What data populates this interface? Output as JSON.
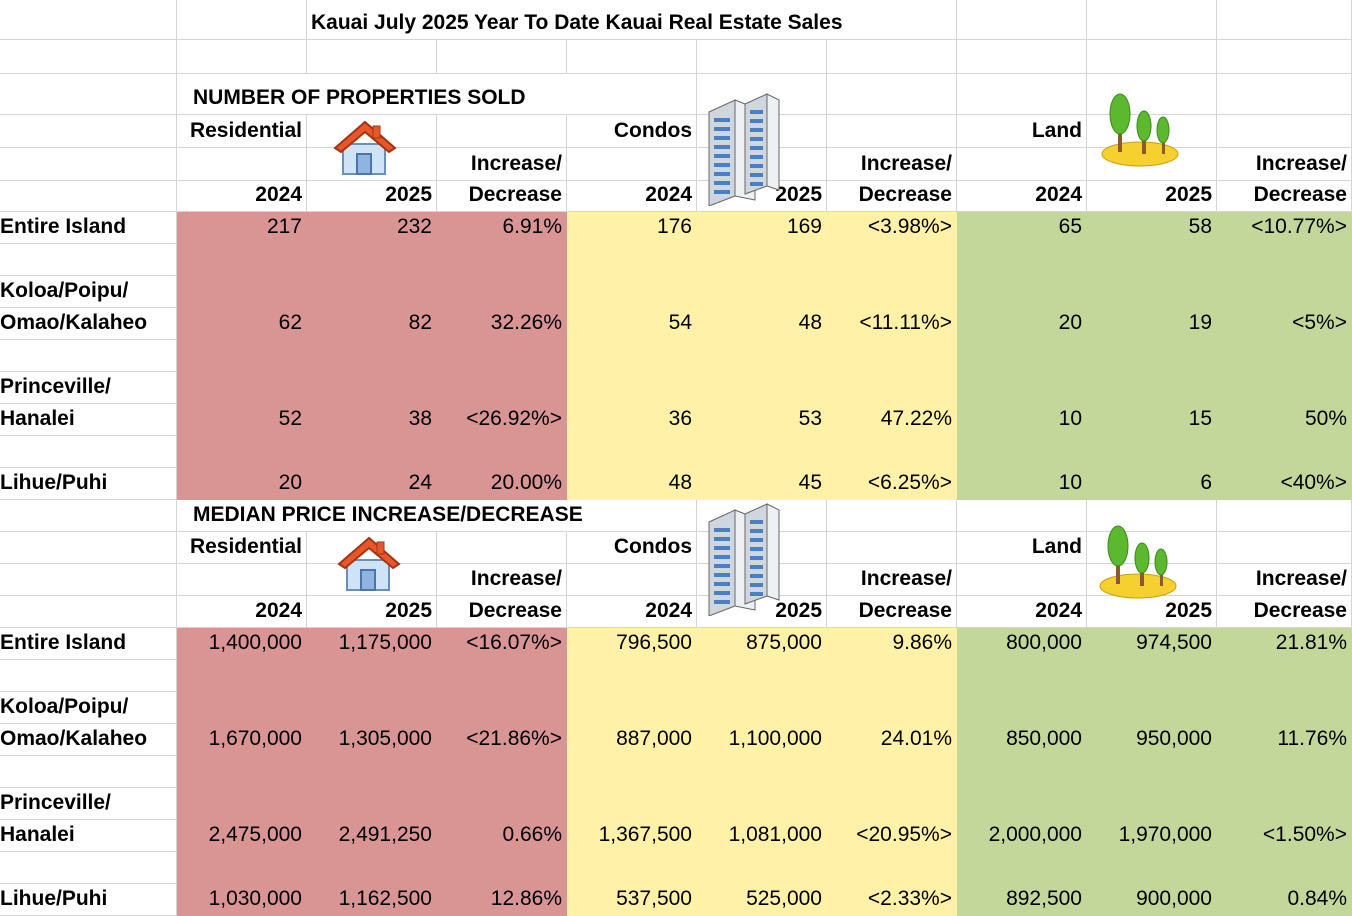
{
  "title": "Kauai July 2025 Year To Date Kauai Real Estate Sales",
  "sections": [
    {
      "heading": "NUMBER OF PROPERTIES SOLD",
      "labels": {
        "residential": "Residential",
        "condos": "Condos",
        "land": "Land",
        "inc1": "Increase/",
        "inc2": "Decrease",
        "y2024": "2024",
        "y2025": "2025"
      },
      "rows": [
        {
          "name1": "Entire Island",
          "name2": "",
          "values": [
            "217",
            "232",
            "6.91%",
            "176",
            "169",
            "<3.98%>",
            "65",
            "58",
            "<10.77%>"
          ]
        },
        {
          "name1": "Koloa/Poipu/",
          "name2": "Omao/Kalaheo",
          "values": [
            "62",
            "82",
            "32.26%",
            "54",
            "48",
            "<11.11%>",
            "20",
            "19",
            "<5%>"
          ]
        },
        {
          "name1": "Princeville/",
          "name2": "Hanalei",
          "values": [
            "52",
            "38",
            "<26.92%>",
            "36",
            "53",
            "47.22%",
            "10",
            "15",
            "50%"
          ]
        },
        {
          "name1": "Lihue/Puhi",
          "name2": "",
          "values": [
            "20",
            "24",
            "20.00%",
            "48",
            "45",
            "<6.25%>",
            "10",
            "6",
            "<40%>"
          ]
        }
      ]
    },
    {
      "heading": "MEDIAN PRICE INCREASE/DECREASE",
      "labels": {
        "residential": "Residential",
        "condos": "Condos",
        "land": "Land",
        "inc1": "Increase/",
        "inc2": "Decrease",
        "y2024": "2024",
        "y2025": "2025"
      },
      "rows": [
        {
          "name1": "Entire Island",
          "name2": "",
          "values": [
            "1,400,000",
            "1,175,000",
            "<16.07%>",
            "796,500",
            "875,000",
            "9.86%",
            "800,000",
            "974,500",
            "21.81%"
          ]
        },
        {
          "name1": "Koloa/Poipu/",
          "name2": "Omao/Kalaheo",
          "values": [
            "1,670,000",
            "1,305,000",
            "<21.86%>",
            "887,000",
            "1,100,000",
            "24.01%",
            "850,000",
            "950,000",
            "11.76%"
          ]
        },
        {
          "name1": "Princeville/",
          "name2": "Hanalei",
          "values": [
            "2,475,000",
            "2,491,250",
            "0.66%",
            "1,367,500",
            "1,081,000",
            "<20.95%>",
            "2,000,000",
            "1,970,000",
            "<1.50%>"
          ]
        },
        {
          "name1": "Lihue/Puhi",
          "name2": "",
          "values": [
            "1,030,000",
            "1,162,500",
            "12.86%",
            "537,500",
            "525,000",
            "<2.33%>",
            "892,500",
            "900,000",
            "0.84%"
          ]
        }
      ]
    }
  ],
  "icons": [
    "house-icon",
    "condo-buildings-icon",
    "land-trees-icon"
  ]
}
